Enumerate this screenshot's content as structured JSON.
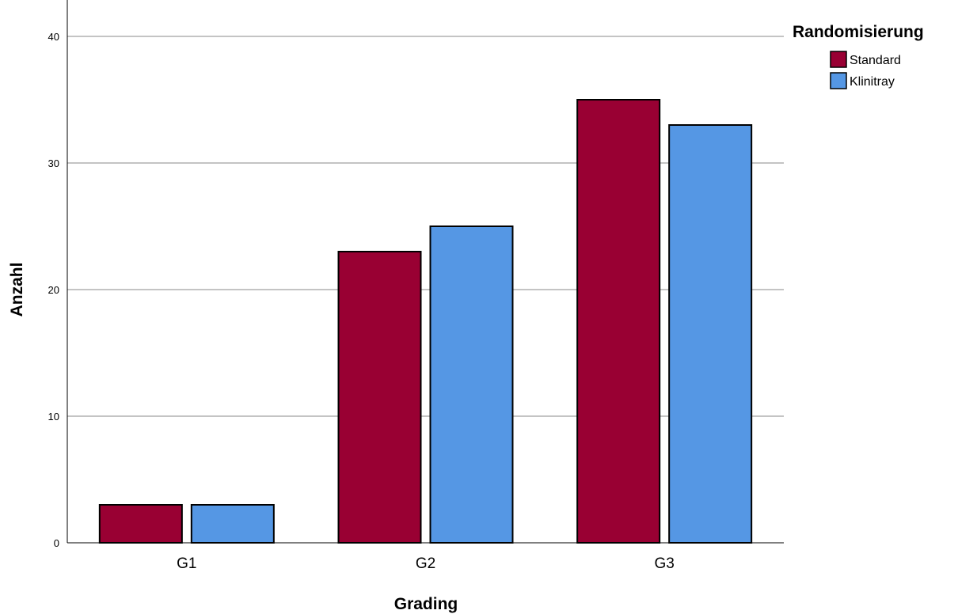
{
  "chart_data": {
    "type": "bar",
    "title": "",
    "xlabel": "Grading",
    "ylabel": "Anzahl",
    "categories": [
      "G1",
      "G2",
      "G3"
    ],
    "series": [
      {
        "name": "Standard",
        "values": [
          3,
          23,
          35
        ],
        "color": "#990033"
      },
      {
        "name": "Klinitray",
        "values": [
          3,
          25,
          33
        ],
        "color": "#5597e4"
      }
    ],
    "ylim": [
      0,
      42
    ],
    "yticks": [
      0,
      10,
      20,
      30,
      40
    ],
    "grid": true,
    "legend": {
      "title": "Randomisierung",
      "placement": "top-right"
    }
  }
}
